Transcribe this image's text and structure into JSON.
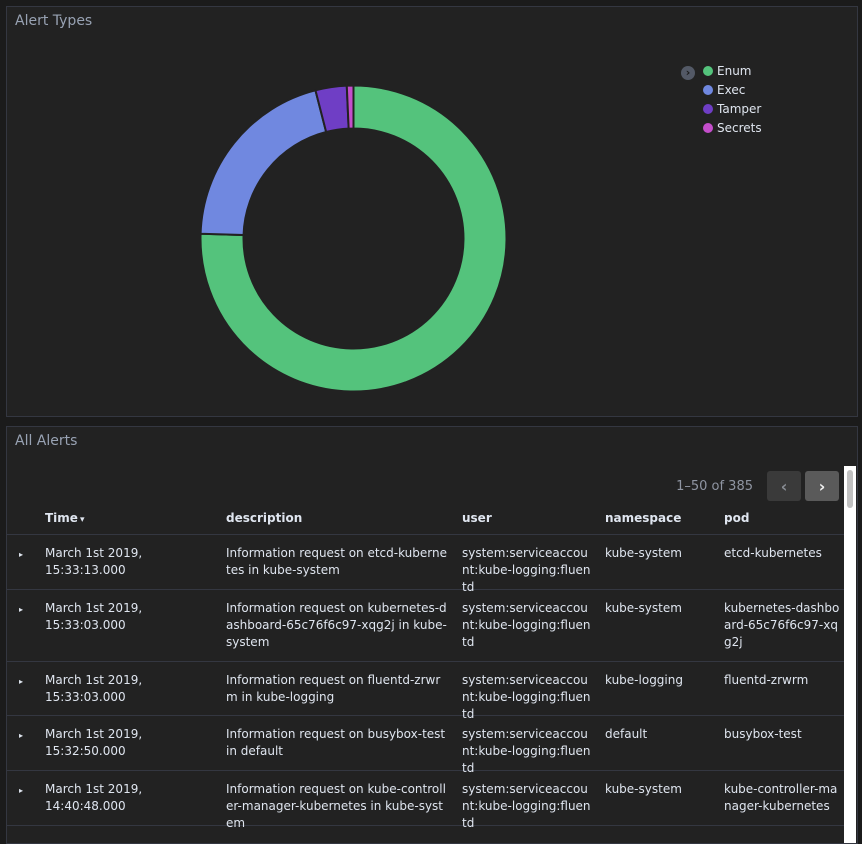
{
  "alert_types": {
    "title": "Alert Types",
    "legend_toggle_icon": "chevron-right-circle-icon",
    "colors": {
      "Enum": "#54c37c",
      "Exec": "#7088e0",
      "Tamper": "#6f3ec5",
      "Secrets": "#c44ecb"
    },
    "chart_data": {
      "type": "pie",
      "variant": "donut",
      "title": "Alert Types",
      "legend": "top-right",
      "slices": [
        {
          "label": "Enum",
          "value": 75.5
        },
        {
          "label": "Exec",
          "value": 20.5
        },
        {
          "label": "Tamper",
          "value": 3.3
        },
        {
          "label": "Secrets",
          "value": 0.7
        }
      ]
    }
  },
  "all_alerts": {
    "title": "All Alerts",
    "pagination": {
      "range_text": "1–50 of 385",
      "prev_icon": "chevron-left-icon",
      "next_icon": "chevron-right-icon"
    },
    "columns": {
      "time": "Time",
      "description": "description",
      "user": "user",
      "namespace": "namespace",
      "pod": "pod"
    },
    "sort_icon": "▾",
    "expand_icon": "▸",
    "rows": [
      {
        "time": "March 1st 2019, 15:33:13.000",
        "description": "Information request on etcd-kubernetes in kube-system",
        "user": "system:serviceaccount:kube-logging:fluentd",
        "namespace": "kube-system",
        "pod": "etcd-kubernetes"
      },
      {
        "time": "March 1st 2019, 15:33:03.000",
        "description": "Information request on kubernetes-dashboard-65c76f6c97-xqg2j in kube-system",
        "user": "system:serviceaccount:kube-logging:fluentd",
        "namespace": "kube-system",
        "pod": "kubernetes-dashboard-65c76f6c97-xqg2j"
      },
      {
        "time": "March 1st 2019, 15:33:03.000",
        "description": "Information request on fluentd-zrwrm in kube-logging",
        "user": "system:serviceaccount:kube-logging:fluentd",
        "namespace": "kube-logging",
        "pod": "fluentd-zrwrm"
      },
      {
        "time": "March 1st 2019, 15:32:50.000",
        "description": "Information request on busybox-test in default",
        "user": "system:serviceaccount:kube-logging:fluentd",
        "namespace": "default",
        "pod": "busybox-test"
      },
      {
        "time": "March 1st 2019, 14:40:48.000",
        "description": "Information request on kube-controller-manager-kubernetes in kube-system",
        "user": "system:serviceaccount:kube-logging:fluentd",
        "namespace": "kube-system",
        "pod": "kube-controller-manager-kubernetes"
      }
    ]
  }
}
